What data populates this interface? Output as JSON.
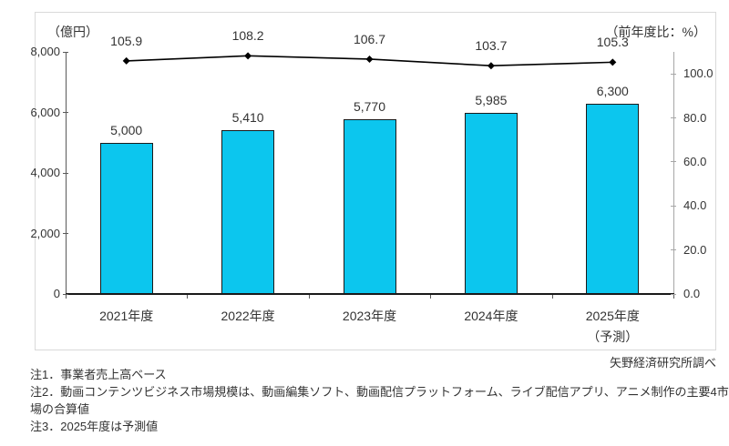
{
  "credit": "矢野経済研究所調べ",
  "notes": [
    "注1．事業者売上高ベース",
    "注2．動画コンテンツビジネス市場規模は、動画編集ソフト、動画配信プラットフォーム、ライブ配信アプリ、アニメ制作の主要4市場の合算値",
    "注3．2025年度は予測値"
  ],
  "chart_data": {
    "type": "combo-bar-line",
    "categories": [
      {
        "label": "2021年度",
        "sub": ""
      },
      {
        "label": "2022年度",
        "sub": ""
      },
      {
        "label": "2023年度",
        "sub": ""
      },
      {
        "label": "2024年度",
        "sub": ""
      },
      {
        "label": "2025年度",
        "sub": "（予測）"
      }
    ],
    "series": [
      {
        "name": "動画コンテンツビジネス市場規模",
        "type": "bar",
        "axis": "left",
        "values": [
          5000,
          5410,
          5770,
          5985,
          6300
        ],
        "labels": [
          "5,000",
          "5,410",
          "5,770",
          "5,985",
          "6,300"
        ],
        "fill": "#0cc6ee",
        "stroke": "#1a1a1a"
      },
      {
        "name": "前年度比",
        "type": "line",
        "axis": "right",
        "values": [
          105.9,
          108.2,
          106.7,
          103.7,
          105.3
        ],
        "labels": [
          "105.9",
          "108.2",
          "106.7",
          "103.7",
          "105.3"
        ],
        "color": "#000000",
        "marker": "diamond"
      }
    ],
    "left_axis": {
      "unit": "（億円）",
      "min": 0,
      "max": 8000,
      "ticks": [
        {
          "v": 0,
          "label": "0"
        },
        {
          "v": 2000,
          "label": "2,000"
        },
        {
          "v": 4000,
          "label": "4,000"
        },
        {
          "v": 6000,
          "label": "6,000"
        },
        {
          "v": 8000,
          "label": "8,000"
        }
      ]
    },
    "right_axis": {
      "unit": "（前年度比：%）",
      "min": 0,
      "max": 110,
      "ticks": [
        {
          "v": 0,
          "label": "0.0"
        },
        {
          "v": 20,
          "label": "20.0"
        },
        {
          "v": 40,
          "label": "40.0"
        },
        {
          "v": 60,
          "label": "60.0"
        },
        {
          "v": 80,
          "label": "80.0"
        },
        {
          "v": 100,
          "label": "100.0"
        }
      ]
    },
    "grid": false,
    "legend": "none"
  },
  "colors": {
    "bar_fill": "#0cc6ee",
    "bar_stroke": "#1a1a1a",
    "line": "#000000",
    "frame_border": "#d9d9d9",
    "text": "#333333"
  }
}
